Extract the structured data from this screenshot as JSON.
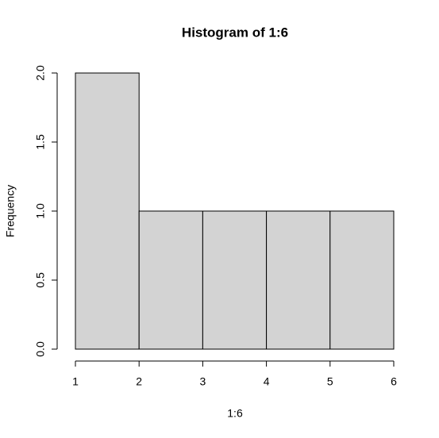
{
  "chart_data": {
    "type": "histogram",
    "title": "Histogram of 1:6",
    "xlabel": "1:6",
    "ylabel": "Frequency",
    "bins": [
      1,
      2,
      3,
      4,
      5,
      6
    ],
    "counts": [
      2,
      1,
      1,
      1,
      1
    ],
    "color": "#d3d3d3",
    "xlim": [
      1,
      6
    ],
    "xticks": [
      1,
      2,
      3,
      4,
      5,
      6
    ],
    "ylim": [
      0,
      2
    ],
    "yticks": [
      {
        "value": 0,
        "label": "0.0"
      },
      {
        "value": 0.5,
        "label": "0.5"
      },
      {
        "value": 1,
        "label": "1.0"
      },
      {
        "value": 1.5,
        "label": "1.5"
      },
      {
        "value": 2,
        "label": "2.0"
      }
    ]
  }
}
